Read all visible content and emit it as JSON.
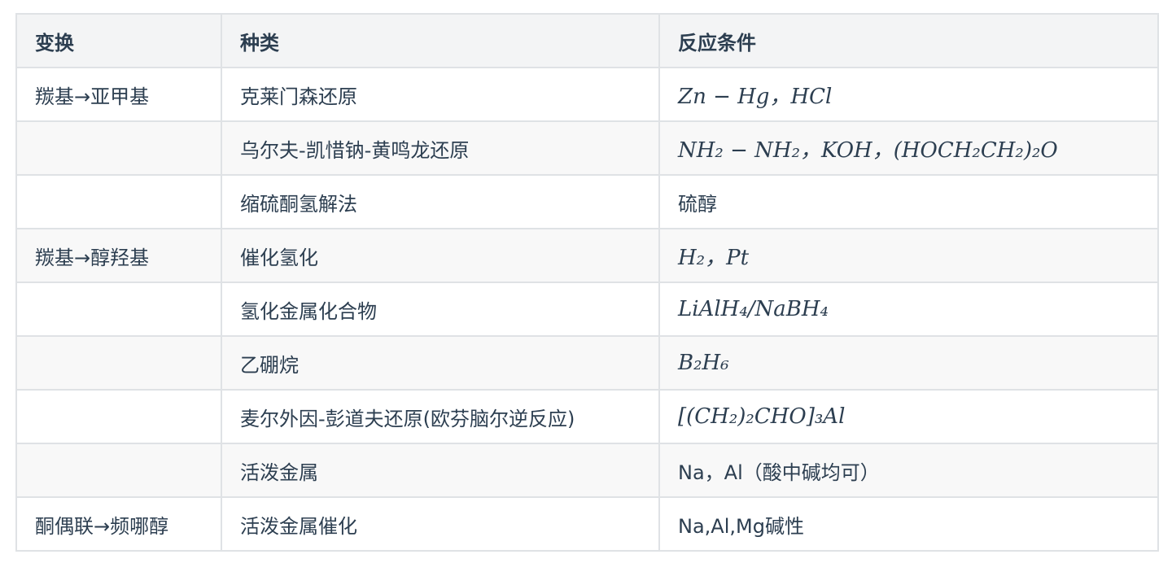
{
  "headers": [
    "变换",
    "种类",
    "反应条件"
  ],
  "rows": [
    {
      "transform": "羰基→亚甲基",
      "type": "克莱门森还原",
      "condition": "Zn − Hg，HCl",
      "math": true
    },
    {
      "transform": "",
      "type": "乌尔夫-凯惜钠-黄鸣龙还原",
      "condition": "NH₂ − NH₂，KOH，(HOCH₂CH₂)₂O",
      "math": true
    },
    {
      "transform": "",
      "type": "缩硫酮氢解法",
      "condition": "硫醇",
      "math": false
    },
    {
      "transform": "羰基→醇羟基",
      "type": "催化氢化",
      "condition": "H₂，Pt",
      "math": true
    },
    {
      "transform": "",
      "type": "氢化金属化合物",
      "condition": "LiAlH₄/NaBH₄",
      "math": true
    },
    {
      "transform": "",
      "type": "乙硼烷",
      "condition": "B₂H₆",
      "math": true
    },
    {
      "transform": "",
      "type": "麦尔外因-彭道夫还原(欧芬脑尔逆反应)",
      "condition": "[(CH₂)₂CHO]₃Al",
      "math": true
    },
    {
      "transform": "",
      "type": "活泼金属",
      "condition": "Na，Al（酸中碱均可）",
      "math": false
    },
    {
      "transform": "酮偶联→频哪醇",
      "type": "活泼金属催化",
      "condition": "Na,Al,Mg碱性",
      "math": false
    }
  ]
}
